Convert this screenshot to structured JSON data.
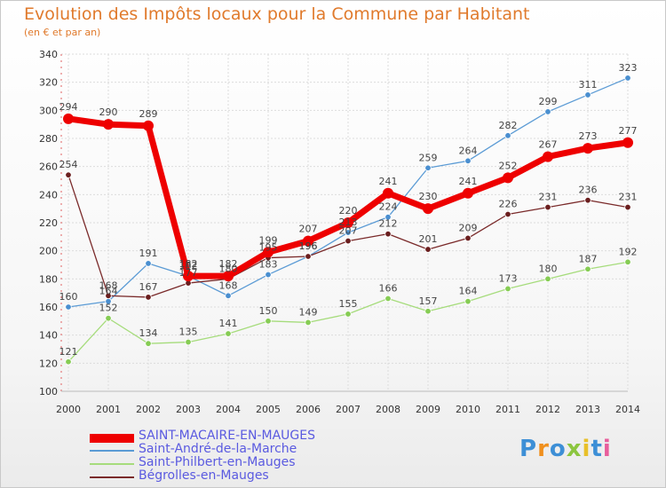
{
  "header": {
    "title": "Evolution des Impôts locaux pour la Commune par Habitant",
    "subtitle": "(en € et par an)"
  },
  "logo": {
    "text": "Proxiti",
    "colors": [
      "#3d8fd6",
      "#f0901e",
      "#3d8fd6",
      "#8cc63f",
      "#e8c02a",
      "#3d8fd6",
      "#e85e9c"
    ]
  },
  "chart_data": {
    "type": "line",
    "title": "Evolution des Impôts locaux pour la Commune par Habitant",
    "subtitle": "(en € et par an)",
    "xlabel": "",
    "ylabel": "",
    "ylim": [
      100,
      340
    ],
    "yticks": [
      100,
      120,
      140,
      160,
      180,
      200,
      220,
      240,
      260,
      280,
      300,
      320,
      340
    ],
    "grid": true,
    "legend_position": "bottom-left",
    "x": [
      "2000",
      "2001",
      "2002",
      "2003",
      "2004",
      "2005",
      "2006",
      "2007",
      "2008",
      "2009",
      "2010",
      "2011",
      "2012",
      "2013",
      "2014"
    ],
    "series": [
      {
        "name": "SAINT-MACAIRE-EN-MAUGES",
        "color": "#ee0000",
        "point_color": "#ee0000",
        "label_color": "#333333",
        "legend_color": "#5a5ae0",
        "bold": true,
        "values": [
          294,
          290,
          289,
          182,
          182,
          199,
          207,
          220,
          241,
          230,
          241,
          252,
          267,
          273,
          277
        ]
      },
      {
        "name": "Saint-André-de-la-Marche",
        "color": "#5b9bd5",
        "point_color": "#4a8fd0",
        "label_color": "#444444",
        "legend_color": "#5a5ae0",
        "bold": false,
        "values": [
          160,
          164,
          191,
          182,
          168,
          183,
          196,
          213,
          224,
          259,
          264,
          282,
          299,
          311,
          323
        ]
      },
      {
        "name": "Saint-Philbert-en-Mauges",
        "color": "#a6dc7c",
        "point_color": "#86cc54",
        "label_color": "#444444",
        "legend_color": "#5a5ae0",
        "bold": false,
        "values": [
          121,
          152,
          134,
          135,
          141,
          150,
          149,
          155,
          166,
          157,
          164,
          173,
          180,
          187,
          192
        ]
      },
      {
        "name": "Bégrolles-en-Mauges",
        "color": "#7a2a2a",
        "point_color": "#6a1e1e",
        "label_color": "#444444",
        "legend_color": "#5a5ae0",
        "bold": false,
        "values": [
          254,
          168,
          167,
          177,
          180,
          195,
          196,
          207,
          212,
          201,
          209,
          226,
          231,
          236,
          231
        ]
      }
    ]
  }
}
